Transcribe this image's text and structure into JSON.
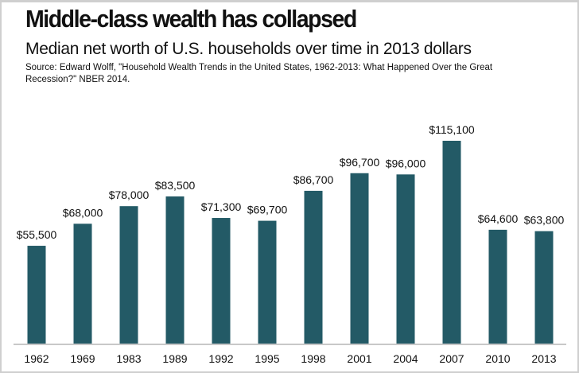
{
  "chart_data": {
    "type": "bar",
    "title": "Middle-class wealth has collapsed",
    "subtitle": "Median net worth of U.S. households over time in 2013 dollars",
    "source": "Source: Edward Wolff, \"Household Wealth Trends in the United States, 1962-2013: What Happened Over the Great Recession?\" NBER 2014.",
    "categories": [
      "1962",
      "1969",
      "1983",
      "1989",
      "1992",
      "1995",
      "1998",
      "2001",
      "2004",
      "2007",
      "2010",
      "2013"
    ],
    "values": [
      55500,
      68000,
      78000,
      83500,
      71300,
      69700,
      86700,
      96700,
      96000,
      115100,
      64600,
      63800
    ],
    "data_labels": [
      "$55,500",
      "$68,000",
      "$78,000",
      "$83,500",
      "$71,300",
      "$69,700",
      "$86,700",
      "$96,700",
      "$96,000",
      "$115,100",
      "$64,600",
      "$63,800"
    ],
    "xlabel": "",
    "ylabel": "",
    "ylim": [
      0,
      115100
    ],
    "grid": false,
    "bar_color": "#235a66",
    "axis_color": "#c8c8c8"
  }
}
